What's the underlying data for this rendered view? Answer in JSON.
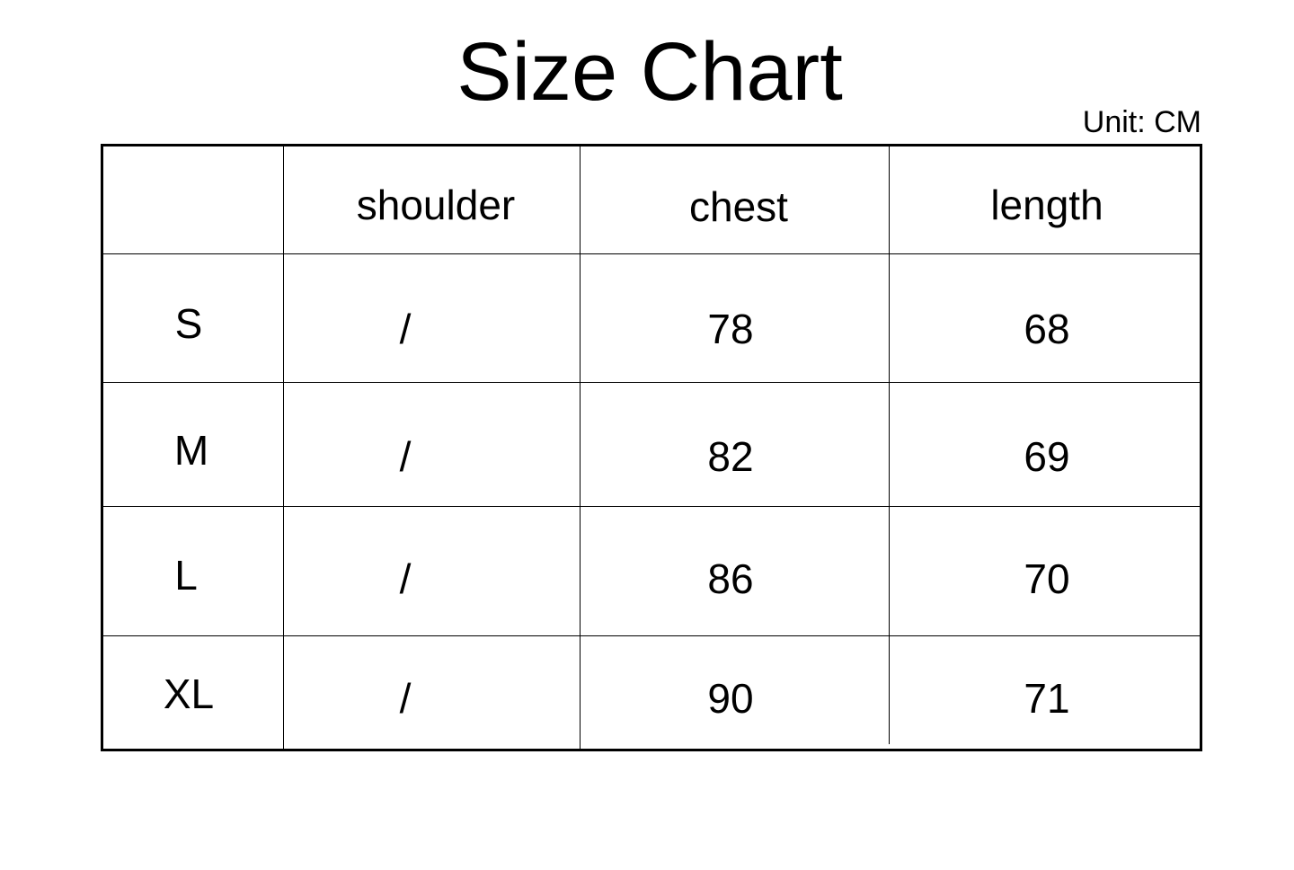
{
  "title": "Size Chart",
  "unit": "Unit: CM",
  "table": {
    "headers": [
      "",
      "shoulder",
      "chest",
      "length"
    ],
    "rows": [
      {
        "size": "S",
        "shoulder": "/",
        "chest": "78",
        "length": "68"
      },
      {
        "size": "M",
        "shoulder": "/",
        "chest": "82",
        "length": "69"
      },
      {
        "size": "L",
        "shoulder": "/",
        "chest": "86",
        "length": "70"
      },
      {
        "size": "XL",
        "shoulder": "/",
        "chest": "90",
        "length": "71"
      }
    ]
  }
}
